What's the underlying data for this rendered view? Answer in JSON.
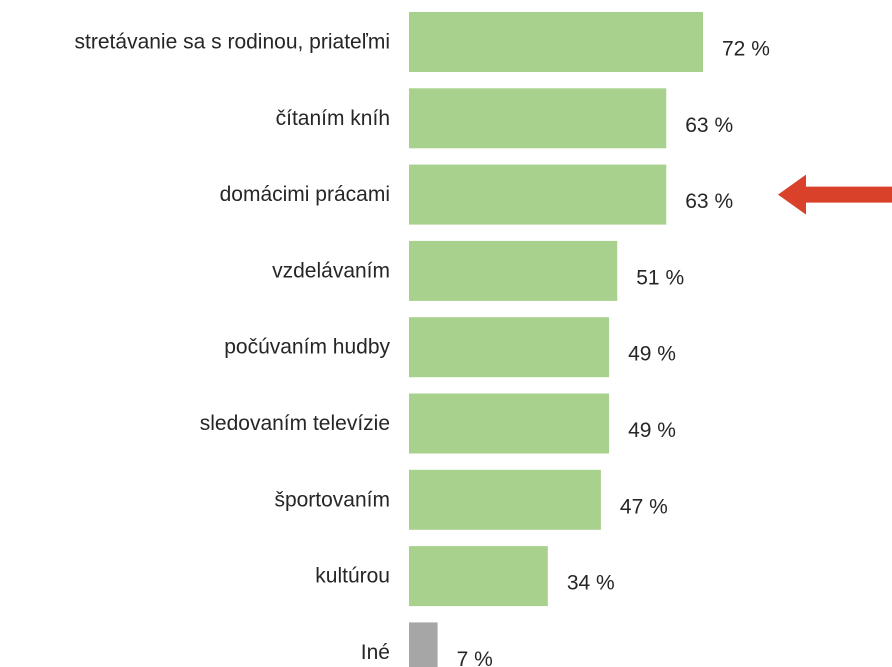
{
  "chart_data": {
    "type": "bar",
    "orientation": "horizontal",
    "title": "",
    "xlabel": "",
    "ylabel": "",
    "xlim": [
      0,
      72
    ],
    "grid": false,
    "legend": "none",
    "unit_suffix": " %",
    "categories": [
      "stretávanie sa s rodinou, priateľmi",
      "čítaním kníh",
      "domácimi prácami",
      "vzdelávaním",
      "počúvaním hudby",
      "sledovaním televízie",
      "športovaním",
      "kultúrou",
      "Iné"
    ],
    "values": [
      72,
      63,
      63,
      51,
      49,
      49,
      47,
      34,
      7
    ],
    "value_labels": [
      "72 %",
      "63 %",
      "63 %",
      "51 %",
      "49 %",
      "49 %",
      "47 %",
      "34 %",
      "7 %"
    ],
    "bar_colors": [
      "#a9d18e",
      "#a9d18e",
      "#a9d18e",
      "#a9d18e",
      "#a9d18e",
      "#a9d18e",
      "#a9d18e",
      "#a9d18e",
      "#a6a6a6"
    ],
    "highlight": {
      "category": "domácimi prácami",
      "marker": "red-arrow",
      "color": "#d9412a"
    }
  }
}
